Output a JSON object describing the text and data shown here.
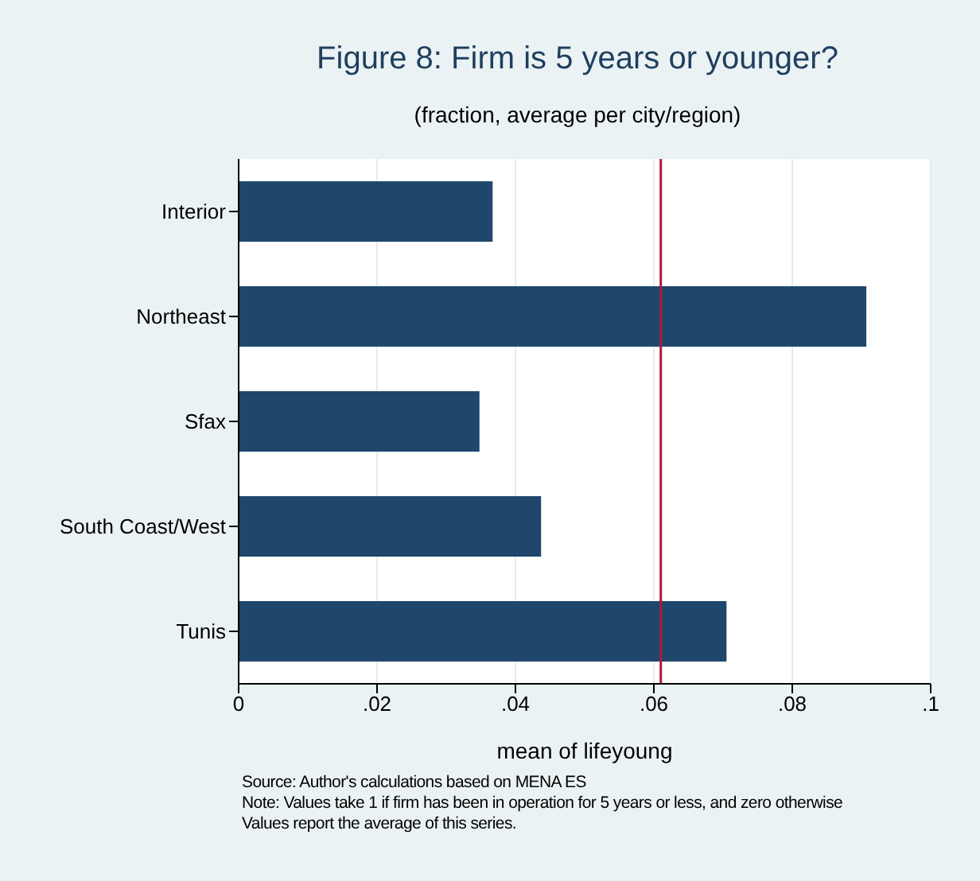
{
  "chart_data": {
    "type": "bar",
    "orientation": "horizontal",
    "title": "Figure 8: Firm is 5 years or younger?",
    "subtitle": "(fraction, average per city/region)",
    "xlabel": "mean of lifeyoung",
    "categories": [
      "Interior",
      "Northeast",
      "Sfax",
      "South Coast/West",
      "Tunis"
    ],
    "values": [
      0.0367,
      0.0907,
      0.0348,
      0.0437,
      0.0705
    ],
    "color": "#1f476c",
    "xlim": [
      0,
      0.1
    ],
    "xticks": [
      {
        "value": 0,
        "label": "0"
      },
      {
        "value": 0.02,
        "label": ".02"
      },
      {
        "value": 0.04,
        "label": ".04"
      },
      {
        "value": 0.06,
        "label": ".06"
      },
      {
        "value": 0.08,
        "label": ".08"
      },
      {
        "value": 0.1,
        "label": ".1"
      }
    ],
    "grid": "x",
    "legend": false,
    "ref_lines": [
      {
        "axis": "x",
        "value": 0.061,
        "color": "#b0173a"
      }
    ],
    "annotations": [
      "Source: Author's calculations based on MENA ES",
      "Note: Values take 1 if firm has been in operation for 5 years or less, and zero otherwise",
      "Values report the average of this series."
    ]
  }
}
